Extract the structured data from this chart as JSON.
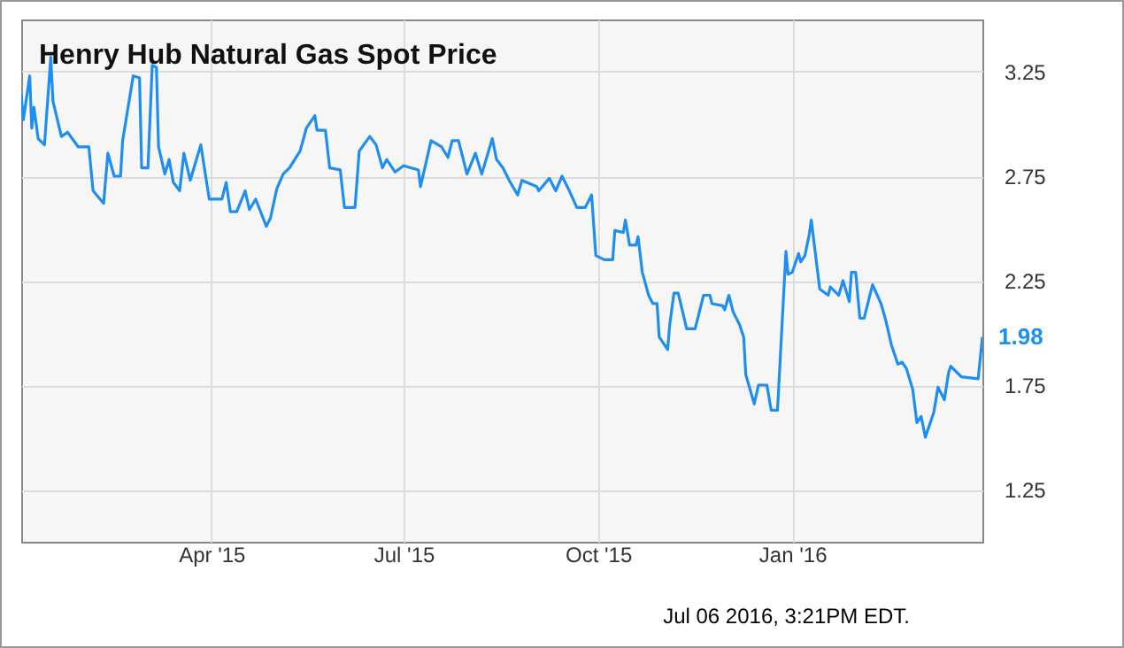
{
  "chart_data": {
    "type": "line",
    "title": "Henry Hub Natural Gas Spot Price",
    "x": [
      "2015-01-01",
      "2015-01-02",
      "2015-01-05",
      "2015-01-06",
      "2015-01-07",
      "2015-01-09",
      "2015-01-12",
      "2015-01-15",
      "2015-01-16",
      "2015-01-20",
      "2015-01-23",
      "2015-01-28",
      "2015-02-02",
      "2015-02-04",
      "2015-02-09",
      "2015-02-11",
      "2015-02-14",
      "2015-02-17",
      "2015-02-18",
      "2015-02-23",
      "2015-02-26",
      "2015-02-27",
      "2015-03-02",
      "2015-03-04",
      "2015-03-06",
      "2015-03-07",
      "2015-03-10",
      "2015-03-12",
      "2015-03-14",
      "2015-03-17",
      "2015-03-19",
      "2015-03-22",
      "2015-03-27",
      "2015-03-31",
      "2015-04-06",
      "2015-04-08",
      "2015-04-10",
      "2015-04-13",
      "2015-04-17",
      "2015-04-19",
      "2015-04-22",
      "2015-04-27",
      "2015-04-29",
      "2015-05-02",
      "2015-05-05",
      "2015-05-08",
      "2015-05-13",
      "2015-05-16",
      "2015-05-20",
      "2015-05-21",
      "2015-05-25",
      "2015-05-27",
      "2015-06-01",
      "2015-06-03",
      "2015-06-08",
      "2015-06-10",
      "2015-06-15",
      "2015-06-18",
      "2015-06-21",
      "2015-06-23",
      "2015-06-27",
      "2015-07-01",
      "2015-07-08",
      "2015-07-09",
      "2015-07-14",
      "2015-07-19",
      "2015-07-22",
      "2015-07-24",
      "2015-07-27",
      "2015-07-31",
      "2015-08-04",
      "2015-08-07",
      "2015-08-12",
      "2015-08-14",
      "2015-08-17",
      "2015-08-20",
      "2015-08-24",
      "2015-08-26",
      "2015-09-02",
      "2015-09-03",
      "2015-09-08",
      "2015-09-11",
      "2015-09-14",
      "2015-09-17",
      "2015-09-21",
      "2015-09-25",
      "2015-09-28",
      "2015-09-30",
      "2015-10-04",
      "2015-10-08",
      "2015-10-09",
      "2015-10-13",
      "2015-10-14",
      "2015-10-16",
      "2015-10-19",
      "2015-10-20",
      "2015-10-22",
      "2015-10-25",
      "2015-10-27",
      "2015-10-29",
      "2015-10-30",
      "2015-11-03",
      "2015-11-04",
      "2015-11-06",
      "2015-11-08",
      "2015-11-12",
      "2015-11-16",
      "2015-11-20",
      "2015-11-23",
      "2015-11-24",
      "2015-11-29",
      "2015-11-30",
      "2015-12-02",
      "2015-12-04",
      "2015-12-07",
      "2015-12-09",
      "2015-12-10",
      "2015-12-14",
      "2015-12-16",
      "2015-12-20",
      "2015-12-22",
      "2015-12-25",
      "2015-12-29",
      "2015-12-30",
      "2016-01-01",
      "2016-01-04",
      "2016-01-05",
      "2016-01-07",
      "2016-01-09",
      "2016-01-10",
      "2016-01-14",
      "2016-01-18",
      "2016-01-19",
      "2016-01-23",
      "2016-01-25",
      "2016-01-28",
      "2016-01-29",
      "2016-01-31",
      "2016-02-02",
      "2016-02-04",
      "2016-02-08",
      "2016-02-12",
      "2016-02-14",
      "2016-02-17",
      "2016-02-20",
      "2016-02-22",
      "2016-02-24",
      "2016-02-27",
      "2016-02-29",
      "2016-03-02",
      "2016-03-04",
      "2016-03-08",
      "2016-03-10",
      "2016-03-13",
      "2016-03-15",
      "2016-03-16",
      "2016-03-21",
      "2016-03-29",
      "2016-03-31"
    ],
    "series": [
      {
        "color": "#1f8ef1",
        "values": [
          3.14,
          3.02,
          3.23,
          2.98,
          3.08,
          2.93,
          2.9,
          3.32,
          3.11,
          2.94,
          2.96,
          2.89,
          2.89,
          2.68,
          2.62,
          2.86,
          2.75,
          2.75,
          2.92,
          3.23,
          3.22,
          2.79,
          2.79,
          3.28,
          3.27,
          2.89,
          2.76,
          2.83,
          2.72,
          2.68,
          2.86,
          2.73,
          2.9,
          2.64,
          2.64,
          2.72,
          2.58,
          2.58,
          2.68,
          2.59,
          2.64,
          2.51,
          2.55,
          2.69,
          2.76,
          2.79,
          2.87,
          2.98,
          3.04,
          2.97,
          2.97,
          2.79,
          2.78,
          2.6,
          2.6,
          2.87,
          2.94,
          2.9,
          2.79,
          2.83,
          2.77,
          2.8,
          2.78,
          2.7,
          2.92,
          2.89,
          2.84,
          2.92,
          2.92,
          2.76,
          2.86,
          2.76,
          2.93,
          2.83,
          2.79,
          2.73,
          2.66,
          2.73,
          2.7,
          2.68,
          2.74,
          2.68,
          2.75,
          2.69,
          2.6,
          2.6,
          2.66,
          2.37,
          2.35,
          2.35,
          2.49,
          2.48,
          2.54,
          2.42,
          2.42,
          2.46,
          2.29,
          2.18,
          2.14,
          2.14,
          1.98,
          1.92,
          2.04,
          2.19,
          2.19,
          2.02,
          2.02,
          2.18,
          2.18,
          2.14,
          2.13,
          2.11,
          2.18,
          2.1,
          2.04,
          1.98,
          1.8,
          1.66,
          1.75,
          1.75,
          1.63,
          1.63,
          2.39,
          2.28,
          2.29,
          2.38,
          2.34,
          2.37,
          2.47,
          2.54,
          2.21,
          2.18,
          2.22,
          2.18,
          2.25,
          2.15,
          2.29,
          2.29,
          2.07,
          2.07,
          2.23,
          2.14,
          2.07,
          1.94,
          1.85,
          1.86,
          1.83,
          1.73,
          1.57,
          1.6,
          1.5,
          1.62,
          1.74,
          1.68,
          1.81,
          1.84,
          1.79,
          1.78,
          1.98
        ]
      }
    ],
    "xlim": [
      "2015-01-01",
      "2016-03-31"
    ],
    "xticks": [
      {
        "value": "2015-04-01",
        "label": "Apr '15"
      },
      {
        "value": "2015-07-01",
        "label": "Jul '15"
      },
      {
        "value": "2015-10-01",
        "label": "Oct '15"
      },
      {
        "value": "2016-01-01",
        "label": "Jan '16"
      }
    ],
    "ylim": [
      1.0,
      3.5
    ],
    "yticks": [
      1.25,
      1.75,
      2.25,
      2.75,
      3.25
    ],
    "grid": true,
    "annotations": [
      {
        "text": "1.98",
        "x": "2016-03-31",
        "y": 1.98
      },
      "Jul 06 2016, 3:21PM EDT."
    ]
  }
}
